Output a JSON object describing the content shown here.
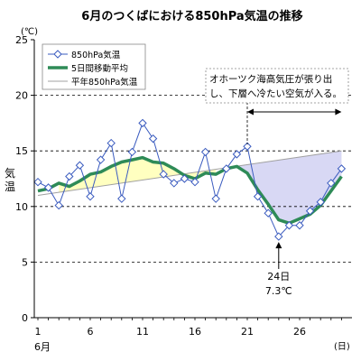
{
  "chart_data": {
    "type": "line",
    "title": "6月のつくばにおける850hPa気温の推移",
    "unit_label": "(℃)",
    "ylabel": "気温",
    "xlabel": "6月",
    "xunit": "(日)",
    "ylim": [
      0,
      25
    ],
    "xlim": [
      1,
      30
    ],
    "y_ticks": [
      0,
      5,
      10,
      15,
      20,
      25
    ],
    "x_ticks": [
      1,
      6,
      11,
      16,
      21,
      26
    ],
    "grid": "dashed horizontal at 5, 10, 15, 20",
    "legend_position": "top-left",
    "series": [
      {
        "name": "850hPa気温",
        "style": "thin blue line with open diamond markers",
        "color": "#3a5bbf",
        "x": [
          1,
          2,
          3,
          4,
          5,
          6,
          7,
          8,
          9,
          10,
          11,
          12,
          13,
          14,
          15,
          16,
          17,
          18,
          19,
          20,
          21,
          22,
          23,
          24,
          25,
          26,
          27,
          28,
          29,
          30
        ],
        "values": [
          12.2,
          11.7,
          10.1,
          12.7,
          13.7,
          10.9,
          14.2,
          15.7,
          10.7,
          14.9,
          17.5,
          16.1,
          12.9,
          12.1,
          12.5,
          12.2,
          14.9,
          10.7,
          13.4,
          14.7,
          15.4,
          10.9,
          9.4,
          7.3,
          8.3,
          8.3,
          9.6,
          10.4,
          12.1,
          13.4
        ]
      },
      {
        "name": "5日間移動平均",
        "style": "thick green line",
        "color": "#2e8b57",
        "x": [
          1,
          2,
          3,
          4,
          5,
          6,
          7,
          8,
          9,
          10,
          11,
          12,
          13,
          14,
          15,
          16,
          17,
          18,
          19,
          20,
          21,
          22,
          23,
          24,
          25,
          26,
          27,
          28,
          29,
          30
        ],
        "values": [
          11.4,
          11.6,
          12.1,
          11.8,
          12.3,
          12.9,
          13.1,
          13.6,
          14.0,
          14.2,
          14.4,
          14.0,
          13.9,
          13.4,
          12.8,
          12.5,
          13.0,
          12.9,
          13.4,
          13.6,
          13.0,
          11.5,
          10.2,
          8.8,
          8.5,
          8.9,
          9.3,
          10.1,
          11.4,
          12.7
        ]
      },
      {
        "name": "平年850hPa気温",
        "style": "thin gray line",
        "color": "#a0a0a0",
        "x": [
          1,
          30
        ],
        "values": [
          11.0,
          15.0
        ]
      }
    ],
    "shaded_regions": [
      {
        "description": "above normal",
        "color": "#ffffc0",
        "x_range": [
          3,
          18
        ]
      },
      {
        "description": "below normal",
        "color": "#d8d8f4",
        "x_range": [
          20,
          30
        ]
      }
    ],
    "annotations": {
      "box_text_line1": "オホーツク海高気圧が張り出",
      "box_text_line2": "し、下層へ冷たい空気が入る。",
      "arrow_range_x": [
        21,
        30
      ],
      "min_label_day": "24日",
      "min_label_value": "7.3℃",
      "min_point": {
        "x": 24,
        "y": 7.3
      }
    }
  }
}
